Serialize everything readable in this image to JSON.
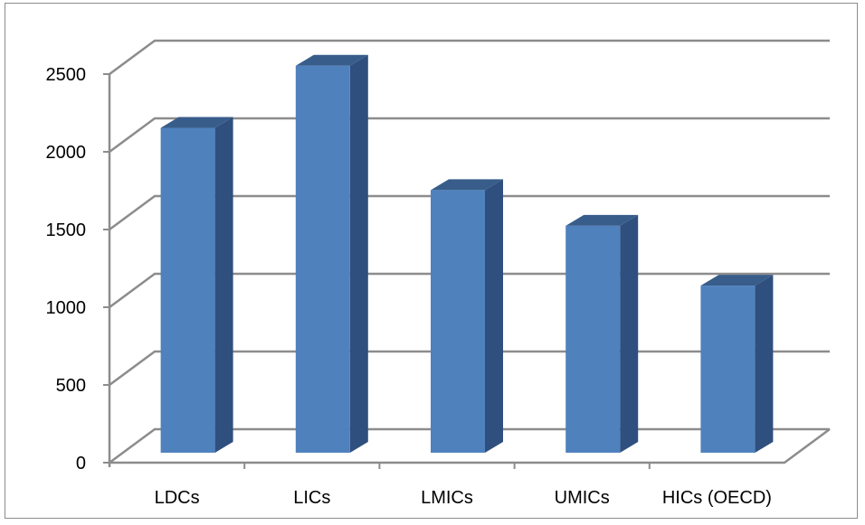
{
  "chart_data": {
    "type": "bar",
    "categories": [
      "LDCs",
      "LICs",
      "LMICs",
      "UMICs",
      "HICs (OECD)"
    ],
    "values": [
      2090,
      2490,
      1690,
      1460,
      1075
    ],
    "ylim": [
      0,
      2500
    ],
    "yticks": [
      0,
      500,
      1000,
      1500,
      2000,
      2500
    ],
    "title": "",
    "xlabel": "",
    "ylabel": "",
    "grid": true,
    "legend": "none",
    "style": "3d-column",
    "colors": {
      "bar_front": "#4f81bd",
      "bar_side": "#2f4f7f",
      "bar_top": "#385d8a",
      "grid": "#8c8c8c"
    }
  }
}
